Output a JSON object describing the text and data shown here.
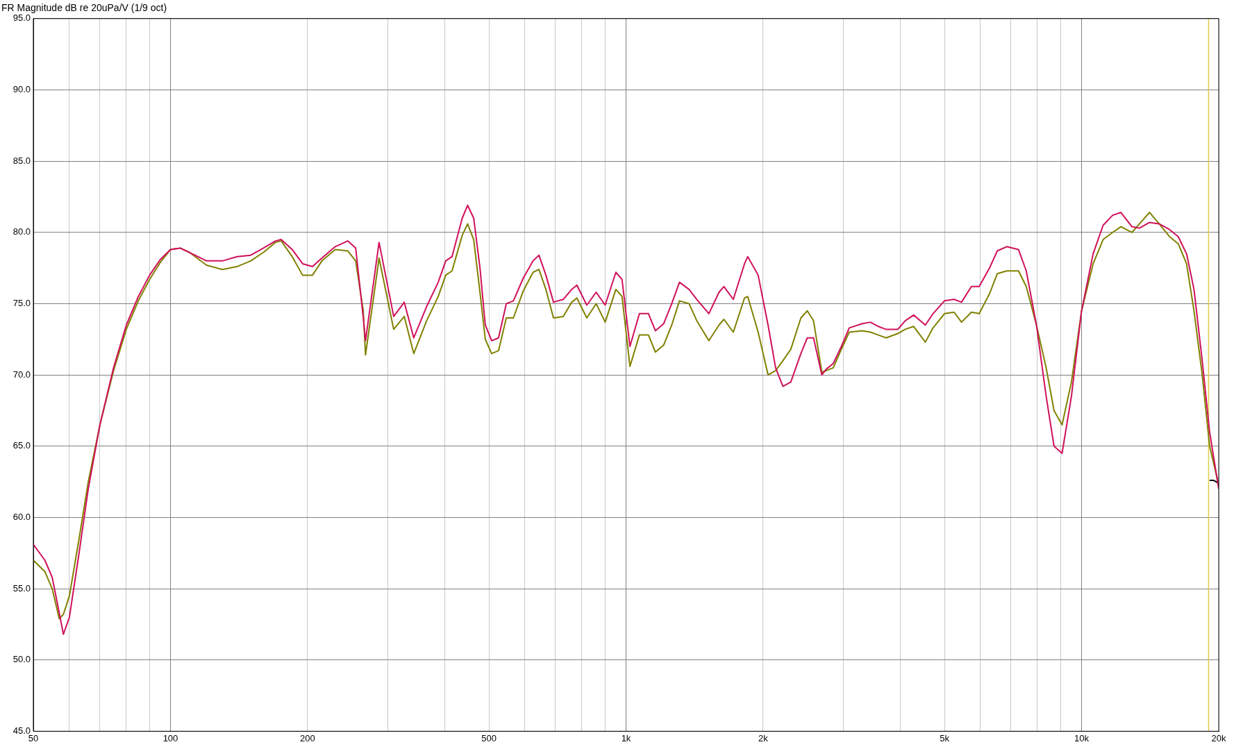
{
  "chart_data": {
    "type": "line",
    "title": "FR Magnitude dB re 20uPa/V (1/9 oct)",
    "log": "x",
    "grid": true,
    "legend": false,
    "marker": "none",
    "line_style": "solid",
    "xlim": [
      50,
      20000
    ],
    "xticks": [
      50,
      {
        "value": 60,
        "label": null
      },
      {
        "value": 70,
        "label": null
      },
      {
        "value": 80,
        "label": null
      },
      {
        "value": 90,
        "label": null
      },
      100,
      200,
      {
        "value": 300,
        "label": null
      },
      {
        "value": 400,
        "label": null
      },
      500,
      {
        "value": 600,
        "label": null
      },
      {
        "value": 700,
        "label": null
      },
      {
        "value": 800,
        "label": null
      },
      {
        "value": 900,
        "label": null
      },
      {
        "value": 1000,
        "label": "1k"
      },
      {
        "value": 2000,
        "label": "2k"
      },
      {
        "value": 3000,
        "label": null
      },
      {
        "value": 4000,
        "label": null
      },
      {
        "value": 5000,
        "label": "5k"
      },
      {
        "value": 6000,
        "label": null
      },
      {
        "value": 7000,
        "label": null
      },
      {
        "value": 8000,
        "label": null
      },
      {
        "value": 9000,
        "label": null
      },
      {
        "value": 10000,
        "label": "10k"
      },
      {
        "value": 20000,
        "label": "20k"
      }
    ],
    "ylim": [
      45,
      95
    ],
    "yticks": [
      {
        "value": 45,
        "label": "45.0"
      },
      {
        "value": 50,
        "label": "50.0"
      },
      {
        "value": 55,
        "label": "55.0"
      },
      {
        "value": 60,
        "label": "60.0"
      },
      {
        "value": 65,
        "label": "65.0"
      },
      {
        "value": 70,
        "label": "70.0"
      },
      {
        "value": 75,
        "label": "75.0"
      },
      {
        "value": 80,
        "label": "80.0"
      },
      {
        "value": 85,
        "label": "85.0"
      },
      {
        "value": 90,
        "label": "90.0"
      },
      {
        "value": 95,
        "label": "95.0"
      }
    ],
    "ref_lines": [
      {
        "axis": "x",
        "value": 19000,
        "color": "#e0cc50"
      }
    ],
    "x": [
      50,
      53,
      55,
      57,
      58.2,
      60,
      63,
      66,
      70,
      75,
      80,
      85,
      90,
      95,
      100,
      105,
      110,
      120,
      130,
      140,
      150,
      160,
      170,
      175,
      185,
      195,
      205,
      215,
      230,
      245,
      255,
      265,
      268,
      287,
      309,
      326,
      342,
      365,
      387,
      402,
      415,
      437,
      449,
      463,
      478,
      491,
      507,
      525,
      546,
      566,
      595,
      625,
      644,
      667,
      693,
      728,
      760,
      780,
      820,
      860,
      900,
      950,
      980,
      1020,
      1070,
      1120,
      1160,
      1210,
      1260,
      1310,
      1375,
      1430,
      1520,
      1600,
      1640,
      1720,
      1820,
      1850,
      1950,
      2050,
      2130,
      2210,
      2300,
      2420,
      2500,
      2580,
      2690,
      2750,
      2850,
      2970,
      3090,
      3300,
      3440,
      3580,
      3720,
      3950,
      4100,
      4280,
      4540,
      4720,
      5000,
      5250,
      5450,
      5730,
      5960,
      6280,
      6530,
      6850,
      7270,
      7560,
      7960,
      8360,
      8700,
      9060,
      9500,
      10000,
      10600,
      11150,
      11700,
      12200,
      12900,
      13400,
      14100,
      14800,
      15600,
      16300,
      17000,
      17650,
      18400,
      19100,
      20000
    ],
    "series": [
      {
        "color": "#d0105a",
        "values": [
          58.1,
          57.0,
          55.8,
          53.3,
          51.8,
          53.0,
          57.5,
          62.0,
          66.5,
          70.5,
          73.5,
          75.5,
          77.0,
          78.1,
          78.8,
          78.9,
          78.6,
          78.0,
          78.0,
          78.3,
          78.4,
          78.9,
          79.4,
          79.5,
          78.8,
          77.8,
          77.6,
          78.2,
          79.0,
          79.4,
          78.9,
          74.0,
          72.4,
          79.3,
          74.1,
          75.1,
          72.6,
          74.8,
          76.5,
          78.0,
          78.3,
          81.0,
          81.9,
          81.0,
          77.5,
          73.5,
          72.4,
          72.6,
          75.0,
          75.2,
          76.8,
          78.0,
          78.4,
          77.0,
          75.1,
          75.3,
          76.0,
          76.3,
          74.9,
          75.8,
          74.9,
          77.2,
          76.7,
          72.0,
          74.3,
          74.3,
          73.1,
          73.6,
          75.0,
          76.5,
          76.0,
          75.3,
          74.3,
          75.8,
          76.2,
          75.3,
          77.8,
          78.3,
          77.0,
          73.5,
          70.5,
          69.2,
          69.5,
          71.5,
          72.6,
          72.6,
          70.0,
          70.4,
          70.8,
          72.0,
          73.3,
          73.6,
          73.7,
          73.4,
          73.2,
          73.2,
          73.8,
          74.2,
          73.5,
          74.3,
          75.2,
          75.3,
          75.1,
          76.2,
          76.2,
          77.5,
          78.7,
          79.0,
          78.8,
          77.3,
          73.5,
          68.5,
          65.0,
          64.5,
          68.5,
          74.5,
          78.5,
          80.5,
          81.2,
          81.4,
          80.4,
          80.3,
          80.7,
          80.6,
          80.2,
          79.7,
          78.5,
          76.0,
          71.0,
          66.0,
          62.0
        ]
      },
      {
        "color": "#808000",
        "values": [
          57.0,
          56.2,
          55.0,
          52.9,
          53.2,
          54.5,
          58.5,
          62.5,
          66.5,
          70.3,
          73.2,
          75.2,
          76.7,
          77.9,
          78.8,
          78.9,
          78.6,
          77.7,
          77.4,
          77.6,
          78.0,
          78.6,
          79.3,
          79.4,
          78.3,
          77.0,
          77.0,
          78.0,
          78.8,
          78.7,
          78.0,
          74.5,
          71.4,
          78.2,
          73.2,
          74.1,
          71.5,
          73.8,
          75.5,
          77.0,
          77.3,
          79.8,
          80.6,
          79.5,
          75.8,
          72.5,
          71.5,
          71.7,
          74.0,
          74.0,
          75.9,
          77.2,
          77.4,
          76.0,
          74.0,
          74.1,
          75.1,
          75.4,
          74.0,
          75.0,
          73.7,
          76.0,
          75.5,
          70.6,
          72.8,
          72.8,
          71.6,
          72.1,
          73.5,
          75.2,
          75.0,
          73.8,
          72.4,
          73.5,
          73.9,
          73.0,
          75.4,
          75.5,
          73.0,
          70.0,
          70.3,
          71.0,
          71.8,
          74.0,
          74.5,
          73.8,
          70.2,
          70.3,
          70.5,
          71.8,
          73.0,
          73.1,
          73.0,
          72.8,
          72.6,
          72.9,
          73.2,
          73.4,
          72.3,
          73.3,
          74.3,
          74.4,
          73.7,
          74.4,
          74.3,
          75.7,
          77.1,
          77.3,
          77.3,
          76.2,
          73.5,
          70.5,
          67.5,
          66.5,
          69.5,
          74.5,
          77.8,
          79.5,
          80.0,
          80.4,
          80.0,
          80.6,
          81.4,
          80.6,
          79.7,
          79.2,
          77.8,
          74.5,
          70.0,
          65.0,
          62.3
        ]
      },
      {
        "color": "#000000",
        "x": [
          19100,
          19500,
          20000
        ],
        "values": [
          62.6,
          62.6,
          62.4
        ]
      }
    ]
  }
}
